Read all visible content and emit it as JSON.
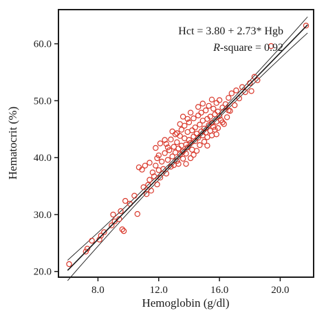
{
  "chart_data": {
    "type": "scatter",
    "xlabel": "Hemoglobin (g/dl)",
    "ylabel": "Hematocrit (%)",
    "xlim": [
      5.4,
      22.2
    ],
    "ylim": [
      19.0,
      66.0
    ],
    "x_ticks": [
      8.0,
      12.0,
      16.0,
      20.0
    ],
    "x_tick_labels": [
      "8.0",
      "12.0",
      "16.0",
      "20.0"
    ],
    "y_ticks": [
      20.0,
      30.0,
      40.0,
      50.0,
      60.0
    ],
    "y_tick_labels": [
      "20.0",
      "30.0",
      "40.0",
      "50.0",
      "60.0"
    ],
    "grid": false,
    "point_color": "#d9372a",
    "line_color": "#1a1a1a",
    "regression": {
      "intercept": 3.8,
      "slope": 2.73,
      "r_squared": 0.92,
      "equation_label": "Hct = 3.80 + 2.73* Hgb",
      "r_square_italic": "R",
      "r_square_rest": "-square = 0.92",
      "confidence_band": true,
      "x_range": [
        6.0,
        21.8
      ]
    },
    "points": [
      [
        6.1,
        21.3
      ],
      [
        7.2,
        23.5
      ],
      [
        7.3,
        24.0
      ],
      [
        7.6,
        25.4
      ],
      [
        8.1,
        25.6
      ],
      [
        8.2,
        26.3
      ],
      [
        8.4,
        26.9
      ],
      [
        8.9,
        28.1
      ],
      [
        9.0,
        30.0
      ],
      [
        9.1,
        28.8
      ],
      [
        9.4,
        29.2
      ],
      [
        9.5,
        30.6
      ],
      [
        9.6,
        27.4
      ],
      [
        9.7,
        27.1
      ],
      [
        9.8,
        32.4
      ],
      [
        10.1,
        31.9
      ],
      [
        10.4,
        33.3
      ],
      [
        10.6,
        30.1
      ],
      [
        10.7,
        38.3
      ],
      [
        10.9,
        37.9
      ],
      [
        11.0,
        34.8
      ],
      [
        11.1,
        38.6
      ],
      [
        11.2,
        33.6
      ],
      [
        11.3,
        35.2
      ],
      [
        11.4,
        36.1
      ],
      [
        11.5,
        34.2
      ],
      [
        11.6,
        37.4
      ],
      [
        11.7,
        36.7
      ],
      [
        11.8,
        38.6
      ],
      [
        11.9,
        35.3
      ],
      [
        11.9,
        39.9
      ],
      [
        12.0,
        37.8
      ],
      [
        12.1,
        42.5
      ],
      [
        12.1,
        36.5
      ],
      [
        12.2,
        39.3
      ],
      [
        12.3,
        38.0
      ],
      [
        12.4,
        40.8
      ],
      [
        12.5,
        37.2
      ],
      [
        12.5,
        42.4
      ],
      [
        12.6,
        39.6
      ],
      [
        12.7,
        41.3
      ],
      [
        12.8,
        38.4
      ],
      [
        12.8,
        43.2
      ],
      [
        12.9,
        40.2
      ],
      [
        13.0,
        41.9
      ],
      [
        13.0,
        38.7
      ],
      [
        13.1,
        44.1
      ],
      [
        13.1,
        40.9
      ],
      [
        13.2,
        39.4
      ],
      [
        13.2,
        42.7
      ],
      [
        13.3,
        41.6
      ],
      [
        13.3,
        38.9
      ],
      [
        13.4,
        43.8
      ],
      [
        13.4,
        40.6
      ],
      [
        13.5,
        42.1
      ],
      [
        13.5,
        44.9
      ],
      [
        13.6,
        41.1
      ],
      [
        13.6,
        39.8
      ],
      [
        13.7,
        43.4
      ],
      [
        13.7,
        45.6
      ],
      [
        13.8,
        42.3
      ],
      [
        13.8,
        40.7
      ],
      [
        13.9,
        44.5
      ],
      [
        13.9,
        41.8
      ],
      [
        14.0,
        43.1
      ],
      [
        14.0,
        46.2
      ],
      [
        14.1,
        42.6
      ],
      [
        14.1,
        39.9
      ],
      [
        14.2,
        44.8
      ],
      [
        14.2,
        41.4
      ],
      [
        14.3,
        43.7
      ],
      [
        14.3,
        46.9
      ],
      [
        14.4,
        42.9
      ],
      [
        14.4,
        45.3
      ],
      [
        14.5,
        41.2
      ],
      [
        14.5,
        44.2
      ],
      [
        14.6,
        47.4
      ],
      [
        14.6,
        43.5
      ],
      [
        14.7,
        45.8
      ],
      [
        14.7,
        42.2
      ],
      [
        14.8,
        44.6
      ],
      [
        14.8,
        47.9
      ],
      [
        14.9,
        43.9
      ],
      [
        14.9,
        46.5
      ],
      [
        15.0,
        45.1
      ],
      [
        15.0,
        42.8
      ],
      [
        15.1,
        48.3
      ],
      [
        15.1,
        44.4
      ],
      [
        15.2,
        46.8
      ],
      [
        15.2,
        43.6
      ],
      [
        15.3,
        45.7
      ],
      [
        15.3,
        49.1
      ],
      [
        15.4,
        44.7
      ],
      [
        15.4,
        47.2
      ],
      [
        15.5,
        46.1
      ],
      [
        15.5,
        43.9
      ],
      [
        15.6,
        48.6
      ],
      [
        15.6,
        45.4
      ],
      [
        15.7,
        47.6
      ],
      [
        15.7,
        44.9
      ],
      [
        15.8,
        49.6
      ],
      [
        15.8,
        46.3
      ],
      [
        15.9,
        48.1
      ],
      [
        15.9,
        45.2
      ],
      [
        16.0,
        47.3
      ],
      [
        16.0,
        50.1
      ],
      [
        16.1,
        46.6
      ],
      [
        16.2,
        48.8
      ],
      [
        16.3,
        45.9
      ],
      [
        16.4,
        49.4
      ],
      [
        16.5,
        47.1
      ],
      [
        16.6,
        50.5
      ],
      [
        16.7,
        48.2
      ],
      [
        16.8,
        51.3
      ],
      [
        17.0,
        49.2
      ],
      [
        17.1,
        51.8
      ],
      [
        17.3,
        50.4
      ],
      [
        17.5,
        52.4
      ],
      [
        17.7,
        51.5
      ],
      [
        18.0,
        53.1
      ],
      [
        18.1,
        51.7
      ],
      [
        18.3,
        54.2
      ],
      [
        18.5,
        53.6
      ],
      [
        19.4,
        59.6
      ],
      [
        21.7,
        63.2
      ],
      [
        13.9,
        46.8
      ],
      [
        14.6,
        48.9
      ],
      [
        13.4,
        45.9
      ],
      [
        15.2,
        42.1
      ],
      [
        12.9,
        44.6
      ],
      [
        14.3,
        40.5
      ],
      [
        13.6,
        47.2
      ],
      [
        15.8,
        44.1
      ],
      [
        12.6,
        41.8
      ],
      [
        14.9,
        49.5
      ],
      [
        13.2,
        44.3
      ],
      [
        16.2,
        46.2
      ],
      [
        12.4,
        43.1
      ],
      [
        15.5,
        50.2
      ],
      [
        13.8,
        38.9
      ],
      [
        14.1,
        47.9
      ],
      [
        16.6,
        48.3
      ],
      [
        11.8,
        41.7
      ],
      [
        12.0,
        40.4
      ],
      [
        11.4,
        39.1
      ]
    ]
  }
}
